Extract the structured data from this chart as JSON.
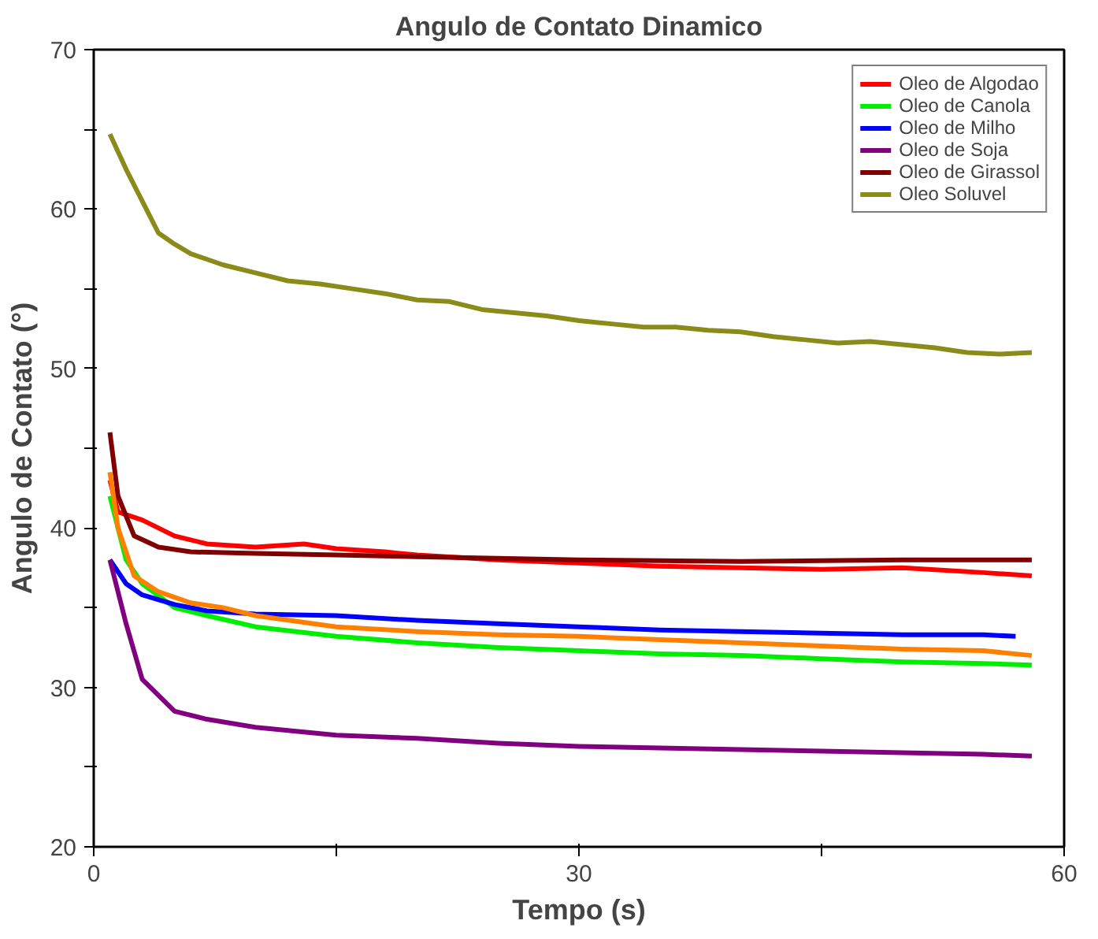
{
  "chart_data": {
    "type": "line",
    "title": "Angulo de Contato Dinamico",
    "xlabel": "Tempo (s)",
    "ylabel": "Angulo de Contato (°)",
    "xlim": [
      0,
      60
    ],
    "ylim": [
      20,
      70
    ],
    "xticks": [
      0,
      {
        "value": 15,
        "label": null
      },
      30,
      {
        "value": 45,
        "label": null
      },
      60
    ],
    "yticks": [
      20,
      {
        "value": 25,
        "label": null
      },
      30,
      {
        "value": 35,
        "label": null
      },
      40,
      {
        "value": 45,
        "label": null
      },
      50,
      {
        "value": 55,
        "label": null
      },
      60,
      {
        "value": 65,
        "label": null
      },
      70
    ],
    "grid": false,
    "legend": "top right",
    "line_style": "solid",
    "series": [
      {
        "name": "Oleo de Algodao",
        "color": "#ff0000",
        "x": [
          1,
          1.5,
          3,
          5,
          7,
          10,
          13,
          15,
          18,
          20,
          25,
          30,
          35,
          40,
          45,
          50,
          55,
          58
        ],
        "values": [
          43,
          41,
          40.5,
          39.5,
          39,
          38.8,
          39,
          38.7,
          38.5,
          38.3,
          38,
          37.8,
          37.6,
          37.5,
          37.4,
          37.5,
          37.2,
          37
        ]
      },
      {
        "name": "Oleo de Canola",
        "color": "#00ee00",
        "x": [
          1,
          2,
          3,
          5,
          7,
          10,
          15,
          20,
          25,
          30,
          35,
          40,
          45,
          50,
          55,
          58
        ],
        "values": [
          42,
          38,
          36.5,
          35,
          34.5,
          33.8,
          33.2,
          32.8,
          32.5,
          32.3,
          32.1,
          32,
          31.8,
          31.6,
          31.5,
          31.4
        ]
      },
      {
        "name": "Oleo de Milho",
        "color": "#0000ff",
        "x": [
          1,
          2,
          3,
          5,
          7,
          10,
          15,
          20,
          25,
          30,
          35,
          40,
          45,
          50,
          55,
          57
        ],
        "values": [
          38,
          36.5,
          35.8,
          35.2,
          34.8,
          34.6,
          34.5,
          34.2,
          34,
          33.8,
          33.6,
          33.5,
          33.4,
          33.3,
          33.3,
          33.2
        ]
      },
      {
        "name": "Oleo de Soja",
        "color": "#800080",
        "x": [
          1,
          2,
          3,
          4,
          5,
          7,
          10,
          15,
          20,
          25,
          30,
          35,
          40,
          45,
          50,
          55,
          58
        ],
        "values": [
          38,
          34,
          30.5,
          29.5,
          28.5,
          28,
          27.5,
          27,
          26.8,
          26.5,
          26.3,
          26.2,
          26.1,
          26,
          25.9,
          25.8,
          25.7
        ]
      },
      {
        "name": "Oleo de Girassol",
        "color": "#800000",
        "x": [
          1,
          1.5,
          2.5,
          4,
          6,
          10,
          15,
          20,
          30,
          40,
          50,
          58
        ],
        "values": [
          46,
          42,
          39.5,
          38.8,
          38.5,
          38.4,
          38.3,
          38.2,
          38,
          37.9,
          38,
          38
        ]
      },
      {
        "color": "#ff8000",
        "x": [
          1,
          1.5,
          2.5,
          4,
          6,
          8,
          10,
          15,
          20,
          25,
          30,
          35,
          40,
          45,
          50,
          55,
          58
        ],
        "values": [
          43.5,
          40,
          37,
          36,
          35.3,
          35,
          34.5,
          33.8,
          33.5,
          33.3,
          33.2,
          33,
          32.8,
          32.6,
          32.4,
          32.3,
          32
        ]
      },
      {
        "name": "Oleo Soluvel",
        "color": "#8b8b1a",
        "x": [
          1,
          2,
          3,
          4,
          5,
          6,
          8,
          10,
          12,
          14,
          16,
          18,
          20,
          22,
          24,
          26,
          28,
          30,
          32,
          34,
          36,
          38,
          40,
          42,
          44,
          46,
          48,
          50,
          52,
          54,
          56,
          58
        ],
        "values": [
          64.7,
          62.5,
          60.5,
          58.5,
          57.8,
          57.2,
          56.5,
          56,
          55.5,
          55.3,
          55,
          54.7,
          54.3,
          54.2,
          53.7,
          53.5,
          53.3,
          53,
          52.8,
          52.6,
          52.6,
          52.4,
          52.3,
          52,
          51.8,
          51.6,
          51.7,
          51.5,
          51.3,
          51,
          50.9,
          51
        ]
      }
    ]
  }
}
